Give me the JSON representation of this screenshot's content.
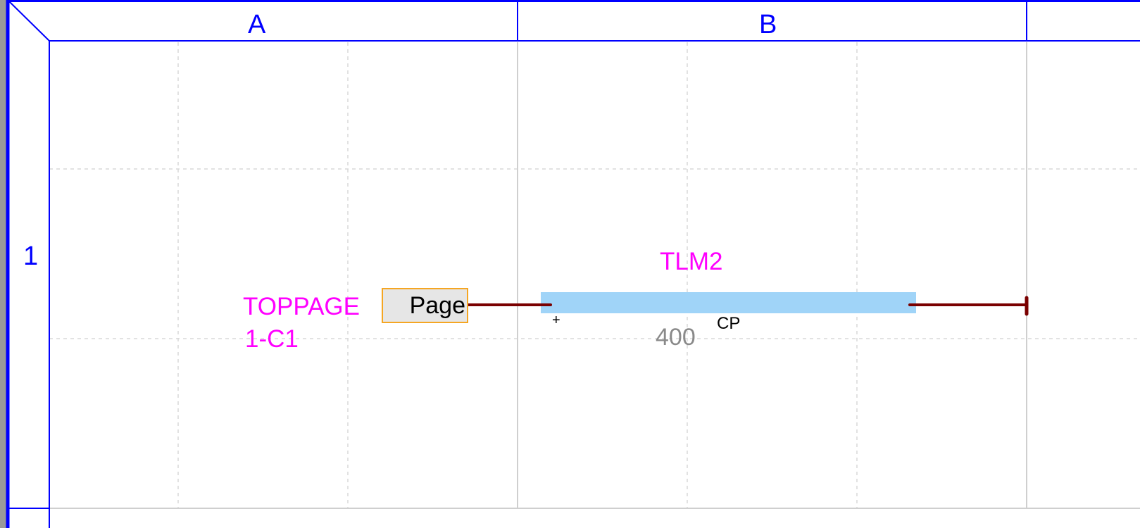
{
  "columns": [
    {
      "label": "A"
    },
    {
      "label": "B"
    }
  ],
  "rows": [
    {
      "label": "1"
    }
  ],
  "offpage_connector": {
    "label": "Page",
    "name": "TOPPAGE",
    "reference": "1-C1"
  },
  "component": {
    "name": "TLM2",
    "value": "400",
    "pin_left": "+",
    "pin_right": "CP",
    "color": "#a0d4f8"
  },
  "colors": {
    "border": "#0000ff",
    "wire": "#7a0000",
    "label": "#ff00ff"
  }
}
